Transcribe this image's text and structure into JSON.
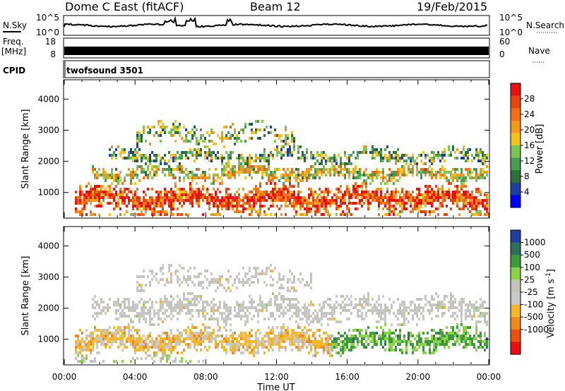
{
  "header": {
    "title": "Dome C East (fitACF)",
    "beam": "Beam 12",
    "date": "19/Feb/2015"
  },
  "panels": {
    "nsky": {
      "label": "N.Sky",
      "ticks": [
        "10^5",
        "10^0"
      ]
    },
    "nsearch": {
      "label": "N.Search",
      "ticks": [
        "10^5",
        "10^0"
      ]
    },
    "freq": {
      "label_line1": "Freq.",
      "label_line2": "[MHz]",
      "ticks": [
        "18",
        "8"
      ]
    },
    "nave": {
      "label": "Nave",
      "ticks": [
        "60",
        "0"
      ]
    },
    "cpid": {
      "label": "CPID",
      "value": "twofsound 3501"
    }
  },
  "colors": {
    "power_scale": [
      "#0000ff",
      "#1f3fa0",
      "#2e6e3c",
      "#4a9a55",
      "#7cc45a",
      "#f4c21e",
      "#f29a1c",
      "#f07018",
      "#e84410",
      "#e81010"
    ],
    "velocity_scale": [
      "#e81010",
      "#ee5010",
      "#f08a1c",
      "#f4b62a",
      "#c8c8c8",
      "#c4c4bc",
      "#8cd34a",
      "#3e9a3c",
      "#2e6e5a",
      "#1f3fa0"
    ]
  },
  "chart_data": [
    {
      "type": "heatmap",
      "title": "Power",
      "xlabel": "Time UT",
      "ylabel": "Slant Range [km]",
      "x_tick_labels": [
        "00:00",
        "04:00",
        "08:00",
        "12:00",
        "16:00",
        "20:00",
        "00:00"
      ],
      "xlim_hours": [
        0,
        24
      ],
      "ylim": [
        200,
        4600
      ],
      "y_tick_labels": [
        "1000",
        "2000",
        "3000",
        "4000"
      ],
      "colorbar_label": "Power [dB]",
      "colorbar_ticks": [
        "4",
        "8",
        "12",
        "16",
        "20",
        "24",
        "28"
      ],
      "colorbar_range": [
        0,
        32
      ],
      "echo_layers": [
        {
          "center_km": 850,
          "halfwidth_km": 450,
          "start_h": 0.5,
          "end_h": 24,
          "value": 26,
          "density": 0.85
        },
        {
          "center_km": 1650,
          "halfwidth_km": 280,
          "start_h": 1.5,
          "end_h": 24,
          "value": 17,
          "density": 0.7
        },
        {
          "center_km": 2200,
          "halfwidth_km": 250,
          "start_h": 2.5,
          "end_h": 24,
          "value": 12,
          "density": 0.55
        },
        {
          "center_km": 2900,
          "halfwidth_km": 350,
          "start_h": 4,
          "end_h": 13,
          "value": 13,
          "density": 0.35
        },
        {
          "center_km": 350,
          "halfwidth_km": 120,
          "start_h": 0.5,
          "end_h": 23.5,
          "value": 22,
          "density": 0.5
        }
      ]
    },
    {
      "type": "heatmap",
      "title": "Velocity",
      "xlabel": "Time UT",
      "ylabel": "Slant Range [km]",
      "x_tick_labels": [
        "00:00",
        "04:00",
        "08:00",
        "12:00",
        "16:00",
        "20:00",
        "00:00"
      ],
      "xlim_hours": [
        0,
        24
      ],
      "ylim": [
        200,
        4600
      ],
      "y_tick_labels": [
        "1000",
        "2000",
        "3000",
        "4000"
      ],
      "colorbar_label": "Velocity [m s^-1]",
      "colorbar_ticks": [
        "1000",
        "500",
        "100",
        "25",
        "-25",
        "-100",
        "-500",
        "-1000"
      ],
      "colorbar_range": [
        -1200,
        1200
      ],
      "echo_layers": [
        {
          "center_km": 1000,
          "halfwidth_km": 450,
          "start_h": 0.5,
          "end_h": 15,
          "value": -300,
          "density": 0.85
        },
        {
          "center_km": 1000,
          "halfwidth_km": 400,
          "start_h": 15,
          "end_h": 24,
          "value": 500,
          "density": 0.75
        },
        {
          "center_km": 2000,
          "halfwidth_km": 450,
          "start_h": 1.5,
          "end_h": 24,
          "value": 0,
          "density": 0.6
        },
        {
          "center_km": 3000,
          "halfwidth_km": 350,
          "start_h": 4,
          "end_h": 14,
          "value": -10,
          "density": 0.3
        },
        {
          "center_km": 350,
          "halfwidth_km": 150,
          "start_h": 0.5,
          "end_h": 8,
          "value": 150,
          "density": 0.45
        }
      ]
    }
  ]
}
